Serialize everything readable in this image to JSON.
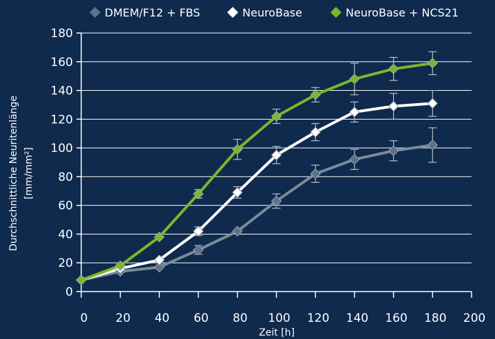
{
  "chart_data": {
    "type": "line",
    "title": "",
    "xlabel": "Zeit [h]",
    "ylabel_line1": "Durchschnittliche Neuritenlänge",
    "ylabel_line2": "[mm/mm²]",
    "xlim": [
      0,
      200
    ],
    "ylim": [
      0,
      180
    ],
    "x_ticks": [
      0,
      20,
      40,
      60,
      80,
      100,
      120,
      140,
      160,
      180,
      200
    ],
    "y_ticks": [
      0,
      20,
      40,
      60,
      80,
      100,
      120,
      140,
      160,
      180
    ],
    "x_tick_labels": [
      "0",
      "20",
      "40",
      "60",
      "80",
      "100",
      "120",
      "140",
      "160",
      "180",
      "200"
    ],
    "y_tick_labels": [
      "0",
      "20",
      "40",
      "60",
      "80",
      "100",
      "120",
      "140",
      "160",
      "180"
    ],
    "grid": "horizontal",
    "legend_position": "top",
    "x": [
      0,
      20,
      40,
      60,
      80,
      100,
      120,
      140,
      160,
      180
    ],
    "series": [
      {
        "name": "DMEM/F12 + FBS",
        "color": "#7a8b99",
        "marker_color": "#5e7185",
        "values": [
          8,
          14,
          17,
          29,
          42,
          63,
          82,
          92,
          98,
          102
        ],
        "errors": [
          0,
          0,
          0,
          3,
          0,
          5,
          6,
          7,
          7,
          12
        ]
      },
      {
        "name": "NeuroBase",
        "color": "#ffffff",
        "marker_color": "#ffffff",
        "values": [
          8,
          16,
          22,
          42,
          69,
          95,
          111,
          125,
          129,
          131
        ],
        "errors": [
          0,
          0,
          0,
          3,
          4,
          6,
          6,
          7,
          9,
          9
        ]
      },
      {
        "name": "NeuroBase + NCS21",
        "color": "#7ab829",
        "marker_color": "#7ab829",
        "values": [
          8,
          18,
          38,
          68,
          99,
          122,
          137,
          148,
          155,
          159
        ],
        "errors": [
          0,
          0,
          0,
          3,
          7,
          5,
          5,
          11,
          8,
          8
        ]
      }
    ]
  },
  "colors": {
    "background": "#0f2a4d",
    "axis": "#ffffff",
    "grid": "#ffffff",
    "text": "#ffffff",
    "errorbar": "#b9c2cc"
  },
  "legend_icon": "diamond-icon"
}
